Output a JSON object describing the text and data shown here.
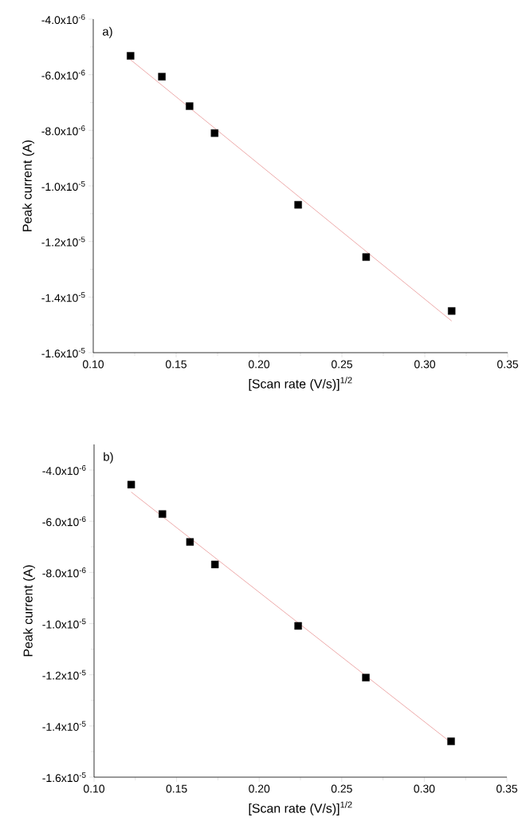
{
  "chart_data": [
    {
      "type": "scatter",
      "xlabel": "[Scan rate (V/s)]$^{1/2}$",
      "ylabel": "Peak current (A)",
      "annotations": [
        "a)"
      ],
      "marker": "square",
      "xlim": [
        0.1,
        0.35
      ],
      "xticks": [
        {
          "value": 0.1,
          "label": "0.10"
        },
        {
          "value": 0.15,
          "label": "0.15"
        },
        {
          "value": 0.2,
          "label": "0.20"
        },
        {
          "value": 0.25,
          "label": "0.25"
        },
        {
          "value": 0.3,
          "label": "0.30"
        },
        {
          "value": 0.35,
          "label": "0.35"
        }
      ],
      "ylim": [
        -1.6e-05,
        -4e-06
      ],
      "yticks": [
        {
          "value": -1.6e-05,
          "label": "-1.6x10$^{-5}$"
        },
        {
          "value": -1.4e-05,
          "label": "-1.4x10$^{-5}$"
        },
        {
          "value": -1.2e-05,
          "label": "-1.2x10$^{-5}$"
        },
        {
          "value": -1e-05,
          "label": "-1.0x10$^{-5}$"
        },
        {
          "value": -8e-06,
          "label": "-8.0x10$^{-6}$"
        },
        {
          "value": -6e-06,
          "label": "-6.0x10$^{-6}$"
        },
        {
          "value": -4e-06,
          "label": "-4.0x10$^{-6}$"
        }
      ],
      "series": [
        {
          "color": "#000000",
          "x": [
            0.1225,
            0.1414,
            0.1581,
            0.1732,
            0.2236,
            0.2646,
            0.3162
          ],
          "values": [
            -5.32e-06,
            -6.07e-06,
            -7.13e-06,
            -8.1e-06,
            -1.068e-05,
            -1.256e-05,
            -1.45e-05
          ]
        },
        {
          "type": "line",
          "marker": "none",
          "color": "#e07070",
          "x": [
            0.1225,
            0.3162
          ],
          "values": [
            -5.46e-06,
            -1.486e-05
          ]
        }
      ]
    },
    {
      "type": "scatter",
      "xlabel": "[Scan rate (V/s)]$^{1/2}$",
      "ylabel": "Peak current (A)",
      "annotations": [
        "b)"
      ],
      "marker": "square",
      "xlim": [
        0.1,
        0.35
      ],
      "xticks": [
        {
          "value": 0.1,
          "label": "0.10"
        },
        {
          "value": 0.15,
          "label": "0.15"
        },
        {
          "value": 0.2,
          "label": "0.20"
        },
        {
          "value": 0.25,
          "label": "0.25"
        },
        {
          "value": 0.3,
          "label": "0.30"
        },
        {
          "value": 0.35,
          "label": "0.35"
        }
      ],
      "ylim": [
        -1.6e-05,
        -3e-06
      ],
      "yticks": [
        {
          "value": -1.6e-05,
          "label": "-1.6x10$^{-5}$"
        },
        {
          "value": -1.4e-05,
          "label": "-1.4x10$^{-5}$"
        },
        {
          "value": -1.2e-05,
          "label": "-1.2x10$^{-5}$"
        },
        {
          "value": -1e-05,
          "label": "-1.0x10$^{-5}$"
        },
        {
          "value": -8e-06,
          "label": "-8.0x10$^{-6}$"
        },
        {
          "value": -6e-06,
          "label": "-6.0x10$^{-6}$"
        },
        {
          "value": -4e-06,
          "label": "-4.0x10$^{-6}$"
        }
      ],
      "series": [
        {
          "color": "#000000",
          "x": [
            0.1225,
            0.1414,
            0.1581,
            0.1732,
            0.2236,
            0.2646,
            0.3162
          ],
          "values": [
            -4.57e-06,
            -5.72e-06,
            -6.81e-06,
            -7.69e-06,
            -1.009e-05,
            -1.211e-05,
            -1.46e-05
          ]
        },
        {
          "type": "line",
          "marker": "none",
          "color": "#e07070",
          "x": [
            0.1225,
            0.3162
          ],
          "values": [
            -4.86e-06,
            -1.465e-05
          ]
        }
      ]
    }
  ]
}
